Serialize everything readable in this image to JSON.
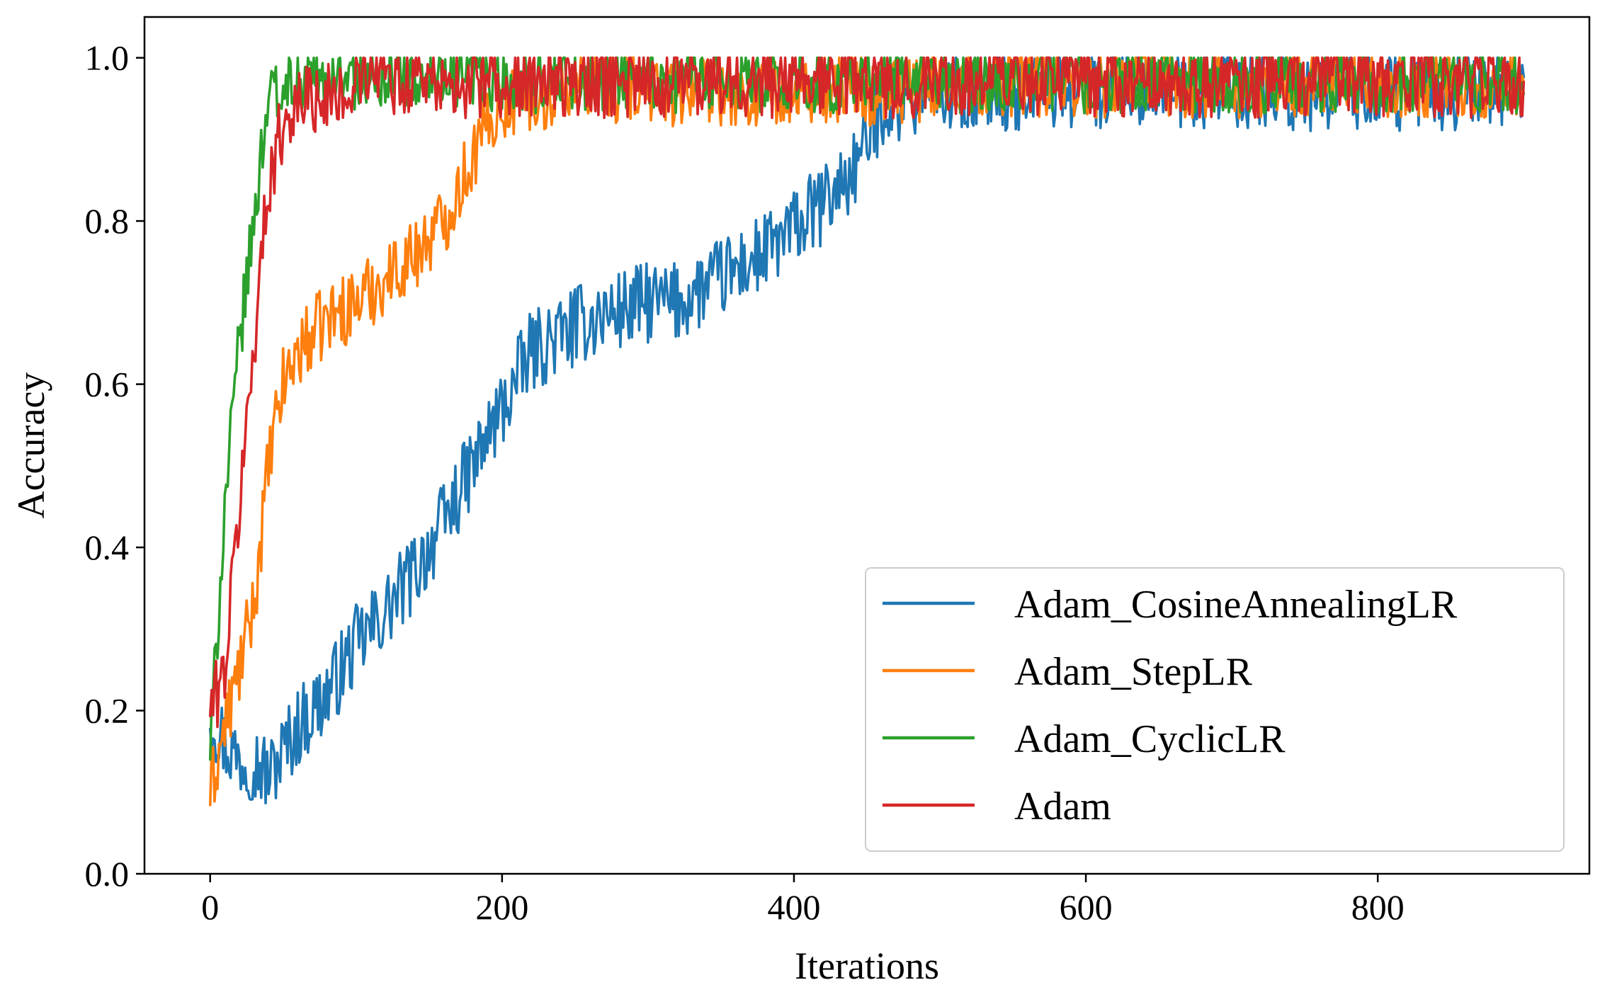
{
  "chart_data": {
    "type": "line",
    "title": "",
    "xlabel": "Iterations",
    "ylabel": "Accuracy",
    "xlim": [
      -45,
      945
    ],
    "ylim": [
      0.0,
      1.05
    ],
    "xticks": [
      0,
      200,
      400,
      600,
      800
    ],
    "xtick_labels": [
      "0",
      "200",
      "400",
      "600",
      "800"
    ],
    "yticks": [
      0.0,
      0.2,
      0.4,
      0.6,
      0.8,
      1.0
    ],
    "ytick_labels": [
      "0.0",
      "0.2",
      "0.4",
      "0.6",
      "0.8",
      "1.0"
    ],
    "grid": false,
    "legend_position": "lower-right",
    "x": [
      0,
      10,
      20,
      30,
      40,
      50,
      60,
      80,
      100,
      120,
      140,
      160,
      180,
      200,
      220,
      240,
      260,
      280,
      300,
      320,
      340,
      360,
      380,
      400,
      420,
      440,
      450,
      460,
      480,
      500,
      550,
      600,
      650,
      700,
      750,
      800,
      850,
      900
    ],
    "series": [
      {
        "name": "Adam_CosineAnnealingLR",
        "color": "#1f77b4",
        "noise": 0.05,
        "values": [
          0.2,
          0.16,
          0.14,
          0.14,
          0.12,
          0.15,
          0.18,
          0.22,
          0.28,
          0.32,
          0.37,
          0.43,
          0.5,
          0.57,
          0.64,
          0.66,
          0.68,
          0.69,
          0.7,
          0.7,
          0.72,
          0.74,
          0.76,
          0.79,
          0.82,
          0.86,
          0.9,
          0.94,
          0.96,
          0.97,
          0.97,
          0.97,
          0.97,
          0.97,
          0.97,
          0.97,
          0.97,
          0.97
        ]
      },
      {
        "name": "Adam_StepLR",
        "color": "#ff7f0e",
        "noise": 0.045,
        "values": [
          0.1,
          0.18,
          0.25,
          0.33,
          0.5,
          0.6,
          0.64,
          0.68,
          0.7,
          0.73,
          0.76,
          0.8,
          0.88,
          0.95,
          0.96,
          0.97,
          0.97,
          0.97,
          0.97,
          0.97,
          0.97,
          0.97,
          0.97,
          0.97,
          0.97,
          0.97,
          0.97,
          0.97,
          0.97,
          0.98,
          0.98,
          0.98,
          0.98,
          0.98,
          0.98,
          0.98,
          0.98,
          0.98
        ]
      },
      {
        "name": "Adam_CyclicLR",
        "color": "#2ca02c",
        "noise": 0.04,
        "values": [
          0.15,
          0.45,
          0.65,
          0.8,
          0.96,
          0.98,
          0.98,
          0.98,
          0.98,
          0.98,
          0.98,
          0.98,
          0.98,
          0.98,
          0.98,
          0.98,
          0.98,
          0.98,
          0.98,
          0.98,
          0.98,
          0.98,
          0.98,
          0.98,
          0.98,
          0.98,
          0.98,
          0.98,
          0.98,
          0.98,
          0.98,
          0.98,
          0.98,
          0.98,
          0.98,
          0.98,
          0.98,
          0.98
        ]
      },
      {
        "name": "Adam",
        "color": "#d62728",
        "noise": 0.045,
        "values": [
          0.2,
          0.25,
          0.45,
          0.65,
          0.85,
          0.92,
          0.95,
          0.97,
          0.98,
          0.98,
          0.98,
          0.98,
          0.98,
          0.98,
          0.98,
          0.98,
          0.98,
          0.98,
          0.98,
          0.98,
          0.98,
          0.98,
          0.98,
          0.98,
          0.98,
          0.98,
          0.98,
          0.98,
          0.98,
          0.98,
          0.98,
          0.98,
          0.98,
          0.98,
          0.98,
          0.98,
          0.98,
          0.98
        ]
      }
    ]
  }
}
